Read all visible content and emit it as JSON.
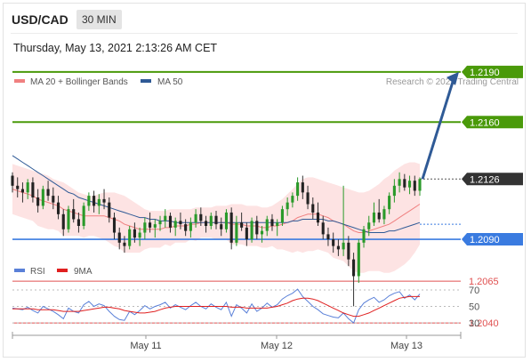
{
  "header": {
    "symbol": "USD/CAD",
    "timeframe": "30 MIN",
    "datetime": "Thursday, May 13, 2021 2:13:26 AM CET"
  },
  "legend": {
    "ma20_label": "MA 20 + Bollinger Bands",
    "ma50_label": "MA 50",
    "credit": "Research © 2021 Trading Central",
    "ma20_color": "#f08080",
    "ma50_color": "#2f5a96"
  },
  "levels": {
    "resistance_color": "#4a9a0a",
    "pivot_color": "#3a7be0",
    "support_color": "#e05050",
    "price_color": "#333333",
    "items": [
      {
        "value": "1.2190",
        "kind": "resistance"
      },
      {
        "value": "1.2160",
        "kind": "resistance"
      },
      {
        "value": "1.2126",
        "kind": "price"
      },
      {
        "value": "1.2090",
        "kind": "pivot"
      },
      {
        "value": "1.2065",
        "kind": "support"
      },
      {
        "value": "1.2040",
        "kind": "support"
      }
    ]
  },
  "rsi_panel": {
    "rsi_label": "RSI",
    "ma_label": "9MA",
    "rsi_color": "#5a80d8",
    "ma_color": "#e02020",
    "ticks": [
      "70",
      "50",
      "30"
    ]
  },
  "x_axis": {
    "labels": [
      "May 11",
      "May 12",
      "May 13"
    ]
  },
  "chart_data": {
    "type": "candlestick",
    "symbol": "USD/CAD",
    "timeframe": "30 MIN",
    "price_range": [
      1.203,
      1.22
    ],
    "rsi_range": [
      20,
      80
    ],
    "ohlc": [
      [
        1.2128,
        1.213,
        1.2118,
        1.2122
      ],
      [
        1.2122,
        1.2127,
        1.2115,
        1.212
      ],
      [
        1.212,
        1.2124,
        1.2112,
        1.2118
      ],
      [
        1.2118,
        1.2126,
        1.2114,
        1.2124
      ],
      [
        1.2124,
        1.2127,
        1.2112,
        1.2115
      ],
      [
        1.2115,
        1.212,
        1.2106,
        1.211
      ],
      [
        1.211,
        1.2122,
        1.2108,
        1.212
      ],
      [
        1.212,
        1.2125,
        1.2113,
        1.2116
      ],
      [
        1.2116,
        1.2121,
        1.2108,
        1.2112
      ],
      [
        1.2112,
        1.2116,
        1.2102,
        1.2105
      ],
      [
        1.2105,
        1.2108,
        1.2092,
        1.2096
      ],
      [
        1.2096,
        1.211,
        1.2094,
        1.2108
      ],
      [
        1.2108,
        1.2114,
        1.21,
        1.2102
      ],
      [
        1.2102,
        1.2106,
        1.2094,
        1.2098
      ],
      [
        1.2098,
        1.2112,
        1.2096,
        1.211
      ],
      [
        1.211,
        1.2118,
        1.2107,
        1.2116
      ],
      [
        1.2116,
        1.2119,
        1.2106,
        1.211
      ],
      [
        1.211,
        1.2117,
        1.2105,
        1.2114
      ],
      [
        1.2114,
        1.212,
        1.2108,
        1.2112
      ],
      [
        1.2112,
        1.2115,
        1.21,
        1.2103
      ],
      [
        1.2103,
        1.2106,
        1.209,
        1.2094
      ],
      [
        1.2094,
        1.2097,
        1.2084,
        1.2088
      ],
      [
        1.2088,
        1.2092,
        1.2082,
        1.2086
      ],
      [
        1.2086,
        1.2098,
        1.2084,
        1.2096
      ],
      [
        1.2096,
        1.21,
        1.2088,
        1.2091
      ],
      [
        1.2091,
        1.2097,
        1.2086,
        1.2094
      ],
      [
        1.2094,
        1.2103,
        1.209,
        1.21
      ],
      [
        1.21,
        1.2106,
        1.2094,
        1.2097
      ],
      [
        1.2097,
        1.2102,
        1.2091,
        1.2099
      ],
      [
        1.2099,
        1.2104,
        1.2095,
        1.2101
      ],
      [
        1.2101,
        1.2108,
        1.2097,
        1.2104
      ],
      [
        1.2104,
        1.2106,
        1.2094,
        1.2097
      ],
      [
        1.2097,
        1.2103,
        1.2092,
        1.2101
      ],
      [
        1.2101,
        1.2106,
        1.2096,
        1.2099
      ],
      [
        1.2099,
        1.2102,
        1.2092,
        1.2095
      ],
      [
        1.2095,
        1.2103,
        1.2091,
        1.21
      ],
      [
        1.21,
        1.2108,
        1.2097,
        1.2105
      ],
      [
        1.2105,
        1.2109,
        1.2098,
        1.2101
      ],
      [
        1.2101,
        1.2104,
        1.2094,
        1.2098
      ],
      [
        1.2098,
        1.2106,
        1.2096,
        1.2104
      ],
      [
        1.2104,
        1.2107,
        1.2096,
        1.2099
      ],
      [
        1.2099,
        1.2103,
        1.2092,
        1.2096
      ],
      [
        1.2096,
        1.2108,
        1.2094,
        1.2106
      ],
      [
        1.2106,
        1.2109,
        1.2084,
        1.2088
      ],
      [
        1.2088,
        1.2104,
        1.2086,
        1.21
      ],
      [
        1.21,
        1.2106,
        1.2095,
        1.2097
      ],
      [
        1.2097,
        1.21,
        1.2086,
        1.209
      ],
      [
        1.209,
        1.2103,
        1.2088,
        1.2101
      ],
      [
        1.2101,
        1.2104,
        1.209,
        1.2093
      ],
      [
        1.2093,
        1.2098,
        1.2088,
        1.2095
      ],
      [
        1.2095,
        1.2104,
        1.2092,
        1.2102
      ],
      [
        1.2102,
        1.2105,
        1.2095,
        1.2098
      ],
      [
        1.2098,
        1.2102,
        1.2092,
        1.21
      ],
      [
        1.21,
        1.211,
        1.2098,
        1.2108
      ],
      [
        1.2108,
        1.2115,
        1.2104,
        1.2112
      ],
      [
        1.2112,
        1.2118,
        1.2109,
        1.2116
      ],
      [
        1.2116,
        1.2127,
        1.2113,
        1.2124
      ],
      [
        1.2124,
        1.2128,
        1.2114,
        1.2118
      ],
      [
        1.2118,
        1.2122,
        1.2108,
        1.2111
      ],
      [
        1.2111,
        1.2115,
        1.2102,
        1.2106
      ],
      [
        1.2106,
        1.2112,
        1.2098,
        1.21
      ],
      [
        1.21,
        1.2104,
        1.209,
        1.2093
      ],
      [
        1.2093,
        1.2097,
        1.2086,
        1.209
      ],
      [
        1.209,
        1.2094,
        1.2082,
        1.2086
      ],
      [
        1.2086,
        1.209,
        1.208,
        1.2084
      ],
      [
        1.2084,
        1.2122,
        1.208,
        1.2088
      ],
      [
        1.2088,
        1.2092,
        1.2074,
        1.2078
      ],
      [
        1.2078,
        1.2082,
        1.205,
        1.2068
      ],
      [
        1.2068,
        1.209,
        1.2064,
        1.2088
      ],
      [
        1.2088,
        1.2098,
        1.2085,
        1.2096
      ],
      [
        1.2096,
        1.2104,
        1.2092,
        1.21
      ],
      [
        1.21,
        1.2112,
        1.2098,
        1.2106
      ],
      [
        1.2106,
        1.2114,
        1.21,
        1.2102
      ],
      [
        1.2102,
        1.211,
        1.2099,
        1.2108
      ],
      [
        1.2108,
        1.2118,
        1.2105,
        1.2116
      ],
      [
        1.2116,
        1.2126,
        1.2112,
        1.2122
      ],
      [
        1.2122,
        1.213,
        1.2118,
        1.2126
      ],
      [
        1.2126,
        1.2129,
        1.2119,
        1.2121
      ],
      [
        1.2121,
        1.2128,
        1.2117,
        1.2125
      ],
      [
        1.2125,
        1.2128,
        1.2116,
        1.2119
      ],
      [
        1.2119,
        1.2127,
        1.2116,
        1.2126
      ]
    ],
    "ma20": [
      1.212,
      1.2119,
      1.2118,
      1.2117,
      1.2116,
      1.2114,
      1.2113,
      1.2112,
      1.2111,
      1.211,
      1.2108,
      1.2107,
      1.2106,
      1.2105,
      1.2104,
      1.2104,
      1.2104,
      1.2104,
      1.2104,
      1.2103,
      1.2102,
      1.2101,
      1.2099,
      1.2098,
      1.2097,
      1.2096,
      1.2096,
      1.2096,
      1.2096,
      1.2096,
      1.2097,
      1.2097,
      1.2098,
      1.2098,
      1.2098,
      1.2099,
      1.2099,
      1.21,
      1.21,
      1.21,
      1.21,
      1.21,
      1.21,
      1.2099,
      1.2099,
      1.2099,
      1.2098,
      1.2098,
      1.2098,
      1.2097,
      1.2097,
      1.2098,
      1.2098,
      1.2099,
      1.21,
      1.2101,
      1.2103,
      1.2104,
      1.2105,
      1.2105,
      1.2105,
      1.2104,
      1.2103,
      1.2101,
      1.21,
      1.2099,
      1.2097,
      1.2095,
      1.2094,
      1.2094,
      1.2095,
      1.2096,
      1.2097,
      1.2098,
      1.2099,
      1.2101,
      1.2103,
      1.2105,
      1.2107,
      1.2109,
      1.2111
    ],
    "bb_upper": [
      1.2135,
      1.2134,
      1.2133,
      1.2132,
      1.2131,
      1.213,
      1.2129,
      1.2128,
      1.2126,
      1.2125,
      1.2124,
      1.2122,
      1.212,
      1.2118,
      1.2117,
      1.2116,
      1.2116,
      1.2117,
      1.2118,
      1.2118,
      1.2118,
      1.2117,
      1.2116,
      1.2114,
      1.2112,
      1.211,
      1.2108,
      1.2107,
      1.2107,
      1.2107,
      1.2107,
      1.2108,
      1.2108,
      1.2108,
      1.2108,
      1.2108,
      1.2109,
      1.2109,
      1.2109,
      1.2109,
      1.211,
      1.211,
      1.211,
      1.2111,
      1.2111,
      1.2111,
      1.211,
      1.211,
      1.211,
      1.2109,
      1.2109,
      1.211,
      1.2112,
      1.2114,
      1.2117,
      1.212,
      1.2123,
      1.2126,
      1.2127,
      1.2127,
      1.2126,
      1.2125,
      1.2124,
      1.2123,
      1.2122,
      1.2121,
      1.212,
      1.2119,
      1.2118,
      1.2118,
      1.2119,
      1.2121,
      1.2123,
      1.2126,
      1.2128,
      1.2131,
      1.2133,
      1.2135,
      1.2136,
      1.2136,
      1.2135
    ],
    "bb_lower": [
      1.2105,
      1.2104,
      1.2103,
      1.2102,
      1.2101,
      1.2098,
      1.2097,
      1.2096,
      1.2096,
      1.2095,
      1.2092,
      1.2092,
      1.2092,
      1.2092,
      1.2091,
      1.2092,
      1.2092,
      1.2091,
      1.209,
      1.2088,
      1.2086,
      1.2085,
      1.2082,
      1.2082,
      1.2082,
      1.2082,
      1.2084,
      1.2085,
      1.2085,
      1.2085,
      1.2087,
      1.2086,
      1.2088,
      1.2088,
      1.2088,
      1.209,
      1.2089,
      1.2091,
      1.2091,
      1.2091,
      1.209,
      1.209,
      1.209,
      1.2087,
      1.2087,
      1.2087,
      1.2086,
      1.2086,
      1.2086,
      1.2085,
      1.2085,
      1.2086,
      1.2084,
      1.2084,
      1.2083,
      1.2082,
      1.2083,
      1.2082,
      1.2083,
      1.2083,
      1.2084,
      1.2083,
      1.2082,
      1.2079,
      1.2078,
      1.2077,
      1.2074,
      1.2071,
      1.207,
      1.207,
      1.2071,
      1.2071,
      1.2071,
      1.207,
      1.207,
      1.2071,
      1.2073,
      1.2075,
      1.2078,
      1.2082,
      1.2087
    ],
    "ma50": [
      1.214,
      1.2138,
      1.2136,
      1.2134,
      1.2132,
      1.213,
      1.2128,
      1.2126,
      1.2124,
      1.2122,
      1.212,
      1.2118,
      1.2117,
      1.2115,
      1.2114,
      1.2113,
      1.2112,
      1.2111,
      1.211,
      1.2109,
      1.2108,
      1.2107,
      1.2106,
      1.2105,
      1.2104,
      1.2103,
      1.2103,
      1.2102,
      1.2102,
      1.2101,
      1.2101,
      1.2101,
      1.21,
      1.21,
      1.21,
      1.21,
      1.21,
      1.21,
      1.21,
      1.21,
      1.21,
      1.21,
      1.21,
      1.21,
      1.21,
      1.21,
      1.21,
      1.21,
      1.21,
      1.21,
      1.21,
      1.21,
      1.21,
      1.21,
      1.21,
      1.2101,
      1.2101,
      1.2102,
      1.2102,
      1.2102,
      1.2102,
      1.2102,
      1.2101,
      1.2101,
      1.21,
      1.2099,
      1.2098,
      1.2097,
      1.2096,
      1.2095,
      1.2094,
      1.2094,
      1.2094,
      1.2094,
      1.2095,
      1.2095,
      1.2096,
      1.2097,
      1.2098,
      1.2099,
      1.21
    ],
    "rsi": [
      48,
      47,
      46,
      49,
      45,
      42,
      50,
      47,
      44,
      40,
      35,
      48,
      44,
      42,
      52,
      56,
      50,
      53,
      51,
      44,
      38,
      34,
      33,
      44,
      40,
      45,
      51,
      47,
      50,
      52,
      55,
      48,
      52,
      49,
      46,
      51,
      55,
      50,
      47,
      53,
      49,
      46,
      55,
      38,
      52,
      48,
      42,
      53,
      44,
      48,
      54,
      49,
      52,
      59,
      63,
      66,
      71,
      62,
      56,
      50,
      46,
      41,
      39,
      37,
      36,
      42,
      35,
      30,
      46,
      54,
      58,
      61,
      55,
      58,
      63,
      66,
      68,
      60,
      64,
      58,
      65
    ],
    "rsi_ma": [
      47,
      47,
      47,
      47,
      47,
      46,
      46,
      46,
      46,
      45,
      44,
      44,
      44,
      44,
      45,
      46,
      47,
      48,
      49,
      49,
      48,
      47,
      45,
      44,
      43,
      42,
      42,
      43,
      44,
      46,
      48,
      49,
      50,
      50,
      50,
      50,
      50,
      50,
      50,
      50,
      50,
      50,
      50,
      49,
      49,
      49,
      48,
      48,
      48,
      48,
      48,
      49,
      50,
      52,
      54,
      57,
      59,
      60,
      60,
      59,
      57,
      54,
      51,
      48,
      45,
      42,
      40,
      38,
      38,
      40,
      42,
      45,
      48,
      51,
      54,
      57,
      60,
      61,
      62,
      62,
      62
    ]
  }
}
